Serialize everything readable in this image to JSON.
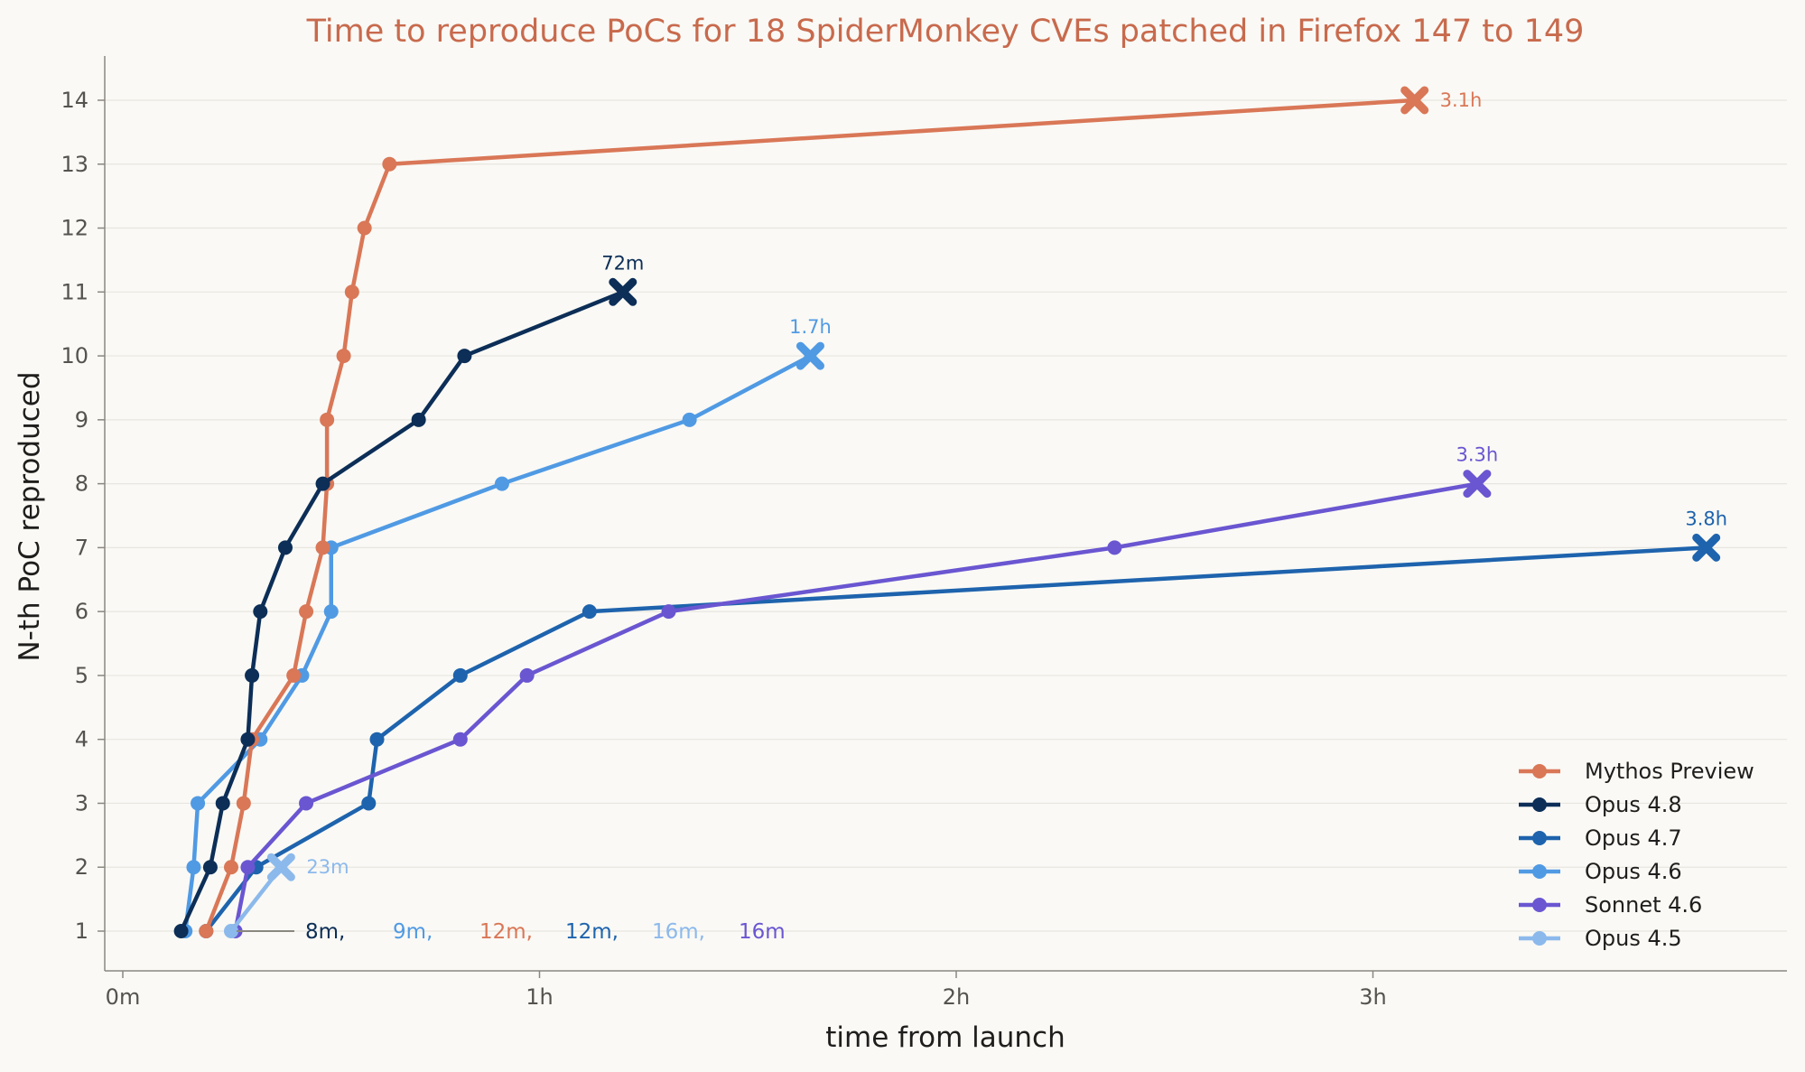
{
  "chart_data": {
    "type": "line",
    "title": "Time to reproduce PoCs for 18 SpiderMonkey CVEs patched in Firefox 147 to 149",
    "xlabel": "time from launch",
    "ylabel": "N-th PoC reproduced",
    "x_unit": "hours",
    "xlim": [
      -0.04,
      4.0
    ],
    "ylim": [
      0.5,
      14.7
    ],
    "x_ticks": [
      {
        "value": 0,
        "label": "0m"
      },
      {
        "value": 1,
        "label": "1h"
      },
      {
        "value": 2,
        "label": "2h"
      },
      {
        "value": 3,
        "label": "3h"
      }
    ],
    "y_ticks": [
      1,
      2,
      3,
      4,
      5,
      6,
      7,
      8,
      9,
      10,
      11,
      12,
      13,
      14
    ],
    "grid": "horizontal",
    "legend_position": "bottom-right",
    "title_color": "#c86a4d",
    "series": [
      {
        "name": "Mythos Preview",
        "color": "#d97757",
        "x": [
          0.2,
          0.26,
          0.29,
          0.31,
          0.41,
          0.44,
          0.48,
          0.49,
          0.49,
          0.53,
          0.55,
          0.58,
          0.64,
          3.1
        ],
        "y": [
          1,
          2,
          3,
          4,
          5,
          6,
          7,
          8,
          9,
          10,
          11,
          12,
          13,
          14
        ],
        "end_label": "3.1h",
        "first_label": "12m,"
      },
      {
        "name": "Opus 4.8",
        "color": "#0c2e57",
        "x": [
          0.14,
          0.21,
          0.24,
          0.3,
          0.31,
          0.33,
          0.39,
          0.48,
          0.71,
          0.82,
          1.2
        ],
        "y": [
          1,
          2,
          3,
          4,
          5,
          6,
          7,
          8,
          9,
          10,
          11
        ],
        "end_label": "72m",
        "first_label": "8m,"
      },
      {
        "name": "Opus 4.7",
        "color": "#1e63ad",
        "x": [
          0.2,
          0.32,
          0.59,
          0.61,
          0.81,
          1.12,
          3.8
        ],
        "y": [
          1,
          2,
          3,
          4,
          5,
          6,
          7
        ],
        "end_label": "3.8h",
        "first_label": "12m,"
      },
      {
        "name": "Opus 4.6",
        "color": "#509ae4",
        "x": [
          0.15,
          0.17,
          0.18,
          0.33,
          0.43,
          0.5,
          0.5,
          0.91,
          1.36,
          1.65
        ],
        "y": [
          1,
          2,
          3,
          4,
          5,
          6,
          7,
          8,
          9,
          10
        ],
        "end_label": "1.7h",
        "first_label": "9m,"
      },
      {
        "name": "Sonnet 4.6",
        "color": "#6a56d1",
        "x": [
          0.27,
          0.3,
          0.44,
          0.81,
          0.97,
          1.31,
          2.38,
          3.25
        ],
        "y": [
          1,
          2,
          3,
          4,
          5,
          6,
          7,
          8
        ],
        "end_label": "3.3h",
        "first_label": "16m"
      },
      {
        "name": "Opus 4.5",
        "color": "#8cb9ec",
        "x": [
          0.26,
          0.38
        ],
        "y": [
          1,
          2
        ],
        "end_label": "23m",
        "first_label": "16m,"
      }
    ]
  }
}
